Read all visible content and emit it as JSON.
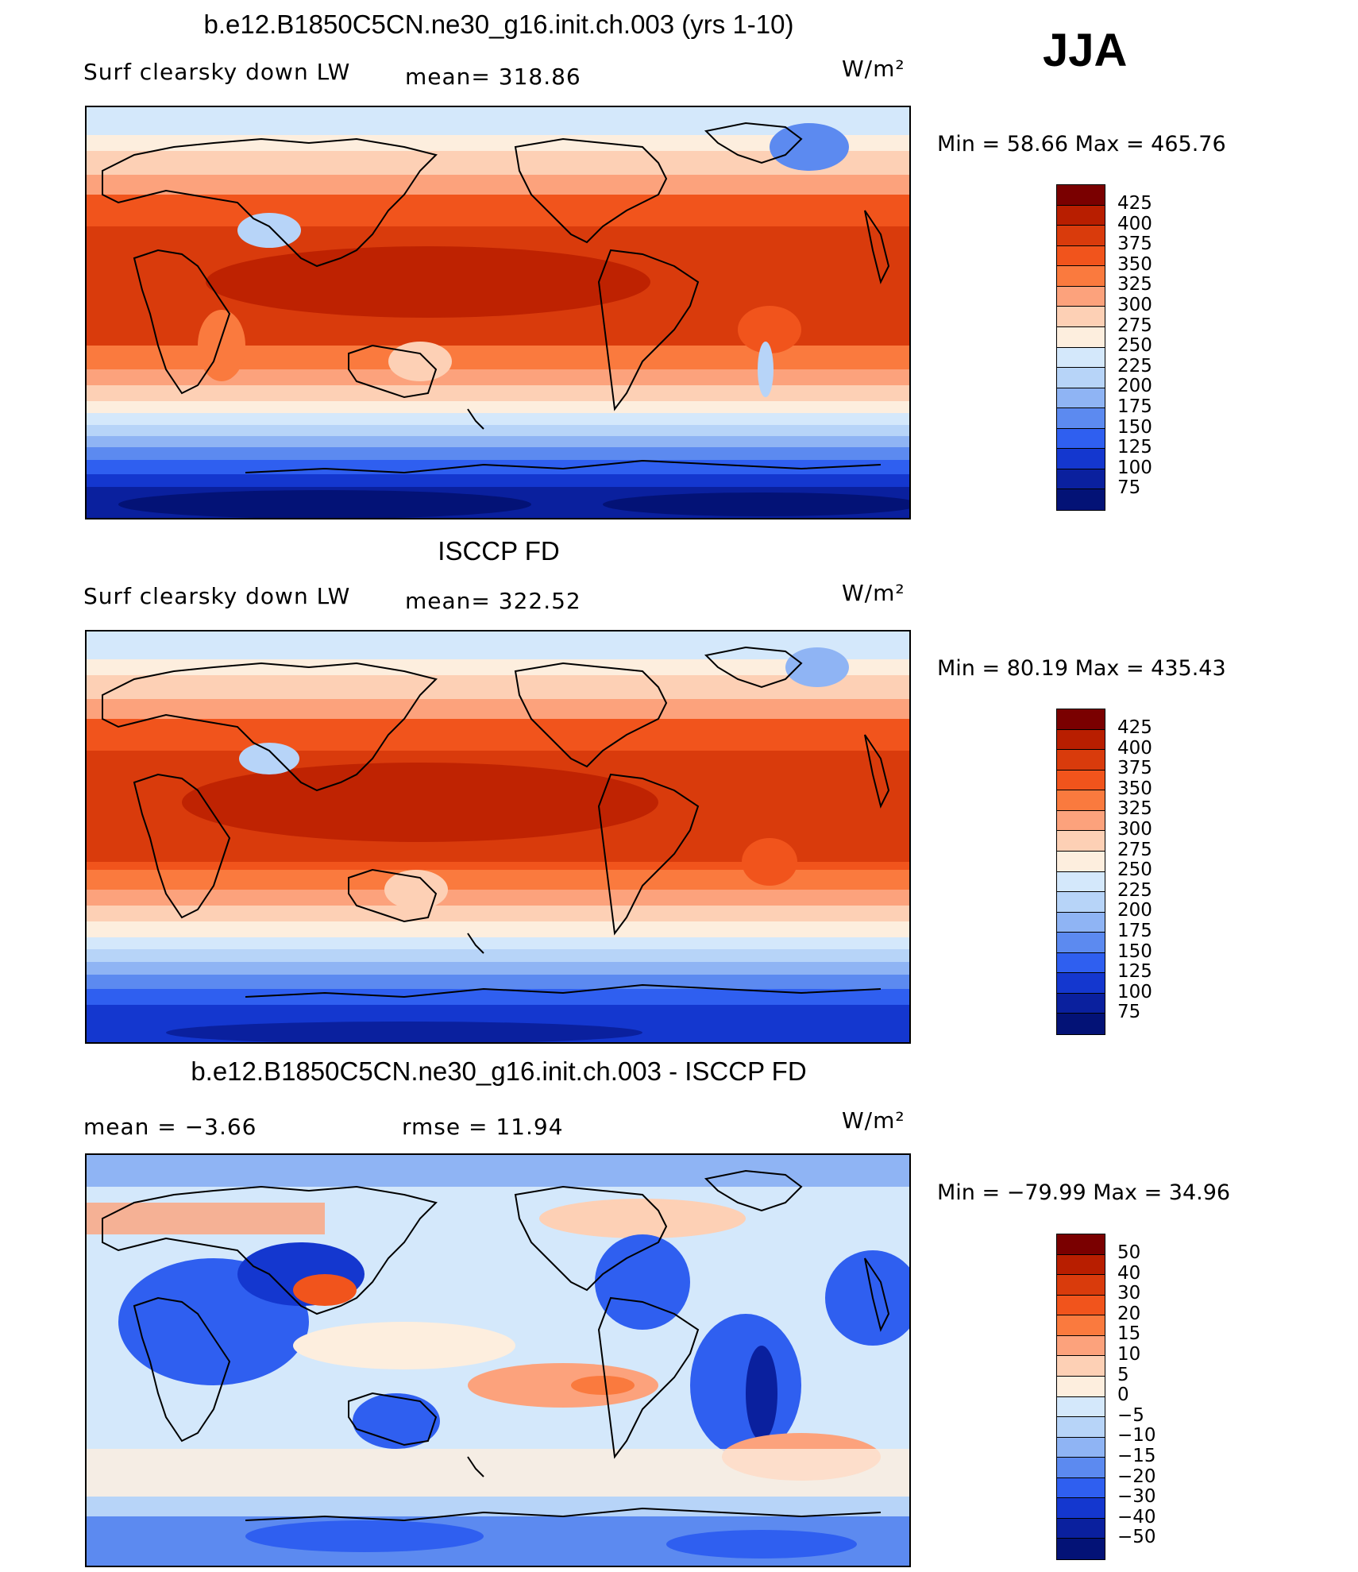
{
  "season": "JJA",
  "panels": [
    {
      "title": "b.e12.B1850C5CN.ne30_g16.init.ch.003 (yrs 1-10)",
      "left_label": "Surf  clearsky  down  LW",
      "center_label": "mean=  318.86",
      "units": "W/m²",
      "min_max": "Min  =    58.66  Max  =  465.76",
      "levels": [
        "425",
        "400",
        "375",
        "350",
        "325",
        "300",
        "275",
        "250",
        "225",
        "200",
        "175",
        "150",
        "125",
        "100",
        "75"
      ],
      "colors": [
        "#7a0000",
        "#b81e00",
        "#d93b0c",
        "#f1541c",
        "#fa7a3e",
        "#fca27c",
        "#fdd0b5",
        "#fdeede",
        "#d4e8fb",
        "#b7d4f8",
        "#8fb4f4",
        "#5c8af0",
        "#2f5ff0",
        "#1437cf",
        "#0a209e",
        "#031276"
      ]
    },
    {
      "title": "ISCCP FD",
      "left_label": "Surf  clearsky  down  LW",
      "center_label": "mean=  322.52",
      "units": "W/m²",
      "min_max": "Min  =    80.19  Max  =  435.43",
      "levels": [
        "425",
        "400",
        "375",
        "350",
        "325",
        "300",
        "275",
        "250",
        "225",
        "200",
        "175",
        "150",
        "125",
        "100",
        "75"
      ],
      "colors": [
        "#7a0000",
        "#b81e00",
        "#d93b0c",
        "#f1541c",
        "#fa7a3e",
        "#fca27c",
        "#fdd0b5",
        "#fdeede",
        "#d4e8fb",
        "#b7d4f8",
        "#8fb4f4",
        "#5c8af0",
        "#2f5ff0",
        "#1437cf",
        "#0a209e",
        "#031276"
      ]
    },
    {
      "title": "b.e12.B1850C5CN.ne30_g16.init.ch.003 - ISCCP FD",
      "left_label": "mean  =    −3.66",
      "center_label": "rmse  =    11.94",
      "units": "W/m²",
      "min_max": "Min  = −79.99  Max  =    34.96",
      "levels": [
        "50",
        "40",
        "30",
        "20",
        "15",
        "10",
        "5",
        "0",
        "−5",
        "−10",
        "−15",
        "−20",
        "−30",
        "−40",
        "−50"
      ],
      "colors": [
        "#7a0000",
        "#b81e00",
        "#d93b0c",
        "#f1541c",
        "#fa7a3e",
        "#fca27c",
        "#fdd0b5",
        "#fdeede",
        "#d4e8fb",
        "#b7d4f8",
        "#8fb4f4",
        "#5c8af0",
        "#2f5ff0",
        "#1437cf",
        "#0a209e",
        "#031276"
      ]
    }
  ]
}
